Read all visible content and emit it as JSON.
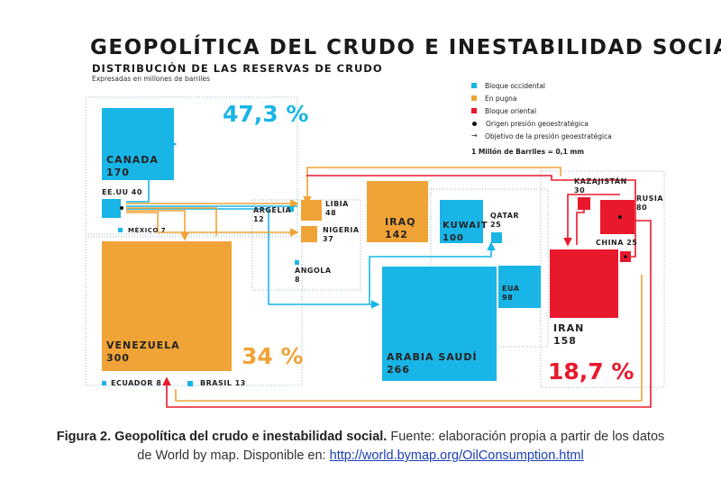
{
  "header": {
    "title": "GEOPOLÍTICA DEL CRUDO E INESTABILIDAD SOCIAL",
    "subtitle": "DISTRIBUCIÓN DE LAS RESERVAS DE CRUDO",
    "note": "Expresadas en millones de barriles"
  },
  "legend": {
    "items": [
      {
        "label": "Bloque occidental",
        "color": "#19b5e6",
        "kind": "square"
      },
      {
        "label": "En pugna",
        "color": "#f0a336",
        "kind": "square"
      },
      {
        "label": "Bloque oriental",
        "color": "#e8192c",
        "kind": "square"
      },
      {
        "label": "Origen presión geoestratégica",
        "kind": "dot"
      },
      {
        "label": "Objetivo de la presión geoestratégica",
        "kind": "arrow"
      }
    ],
    "scale": "1 Millón de Barriles = 0,1 mm"
  },
  "colors": {
    "west": "#19b5e6",
    "dispute": "#f0a336",
    "east": "#e8192c"
  },
  "blocks": {
    "west_pct": "47,3 %",
    "dispute_pct": "34 %",
    "east_pct": "18,7 %"
  },
  "countries": {
    "canada": {
      "name": "CANADA",
      "value": "170"
    },
    "eeuu": {
      "name": "EE.UU",
      "value": "40"
    },
    "mexico": {
      "name": "MÉXICO",
      "value": "7"
    },
    "venezuela": {
      "name": "VENEZUELA",
      "value": "300"
    },
    "ecuador": {
      "name": "ECUADOR",
      "value": "8"
    },
    "brasil": {
      "name": "BRASIL",
      "value": "13"
    },
    "argelia": {
      "name": "ARGELIA",
      "value": "12"
    },
    "libia": {
      "name": "LIBIA",
      "value": "48"
    },
    "nigeria": {
      "name": "NIGERIA",
      "value": "37"
    },
    "angola": {
      "name": "ANGOLA",
      "value": "8"
    },
    "iraq": {
      "name": "IRAQ",
      "value": "142"
    },
    "kuwait": {
      "name": "KUWAIT",
      "value": "100"
    },
    "qatar": {
      "name": "QATAR",
      "value": "25"
    },
    "eua": {
      "name": "EUA",
      "value": "98"
    },
    "arabia": {
      "name": "ARABIA SAUDÍ",
      "value": "266"
    },
    "kazajistan": {
      "name": "KAZAJISTÁN",
      "value": "30"
    },
    "rusia": {
      "name": "RUSIA",
      "value": "80"
    },
    "china": {
      "name": "CHINA",
      "value": "25"
    },
    "iran": {
      "name": "IRAN",
      "value": "158"
    }
  },
  "caption": {
    "label": "Figura 2. Geopolítica del crudo e inestabilidad social.",
    "text": " Fuente: elaboración propia a partir de los datos de World by map. Disponible en: ",
    "link": "http://world.bymap.org/OilConsumption.html"
  }
}
